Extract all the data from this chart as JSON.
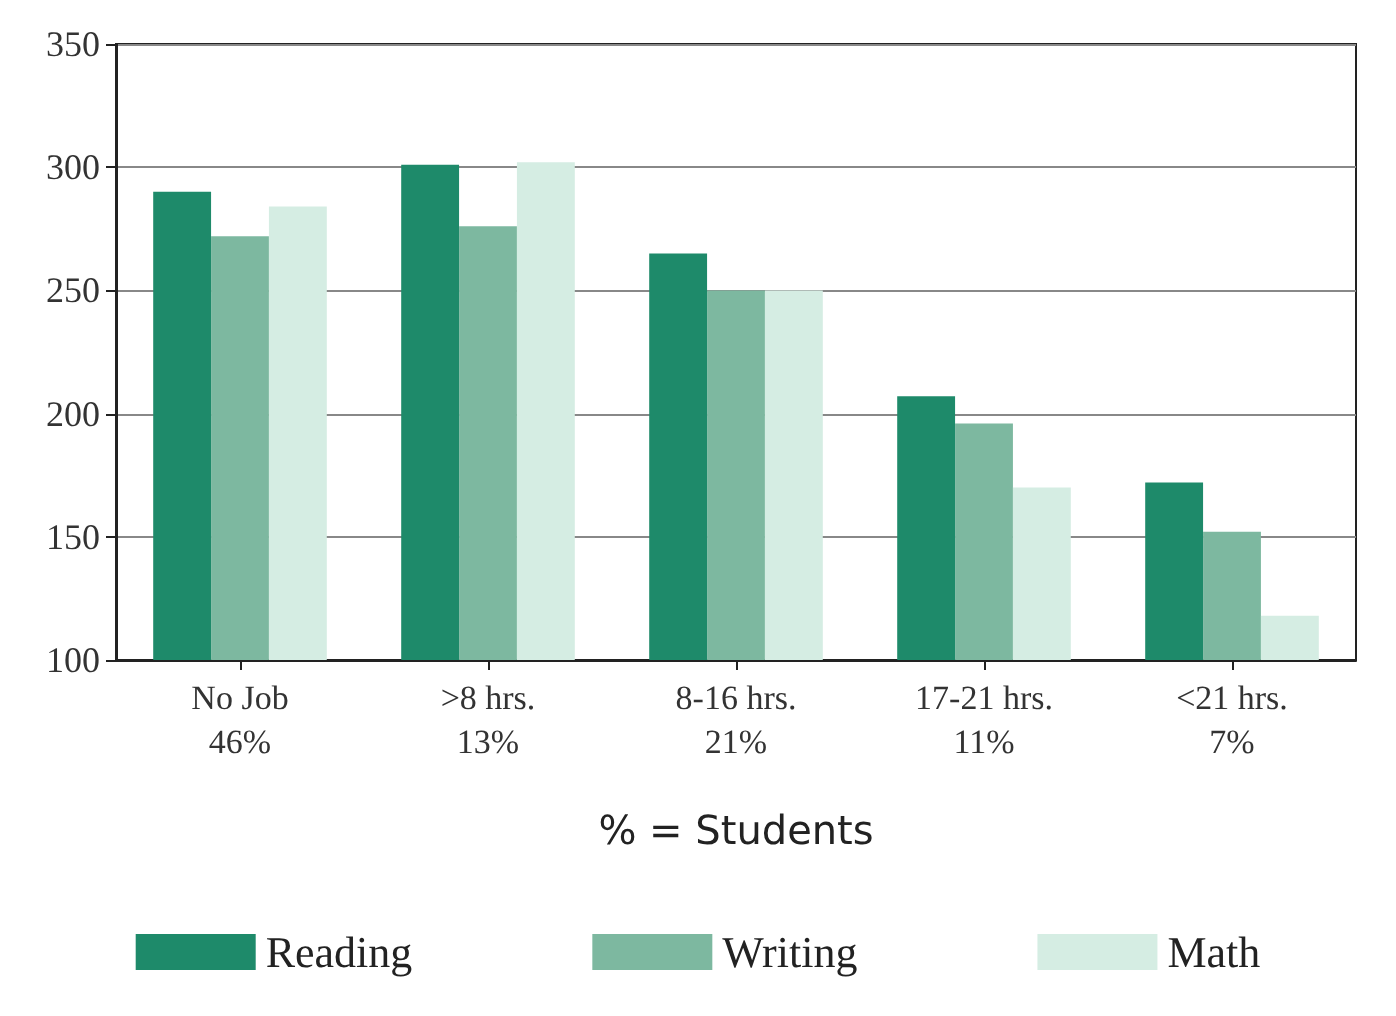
{
  "chart_data": {
    "type": "bar",
    "xlabel": "% = Students",
    "categories": [
      "No Job\n46%",
      ">8 hrs.\n13%",
      "8-16 hrs.\n21%",
      "17-21 hrs.\n11%",
      "<21 hrs.\n7%"
    ],
    "series": [
      {
        "name": "Reading",
        "color": "#1e8a6a",
        "values": [
          290,
          301,
          265,
          207,
          172
        ]
      },
      {
        "name": "Writing",
        "color": "#7db8a0",
        "values": [
          272,
          276,
          250,
          196,
          152
        ]
      },
      {
        "name": "Math",
        "color": "#d5ede3",
        "values": [
          284,
          302,
          250,
          170,
          118
        ]
      }
    ],
    "ylim": [
      100,
      350
    ],
    "yticks": [
      100,
      150,
      200,
      250,
      300,
      350
    ],
    "grid": "y",
    "legend": "bottom"
  }
}
